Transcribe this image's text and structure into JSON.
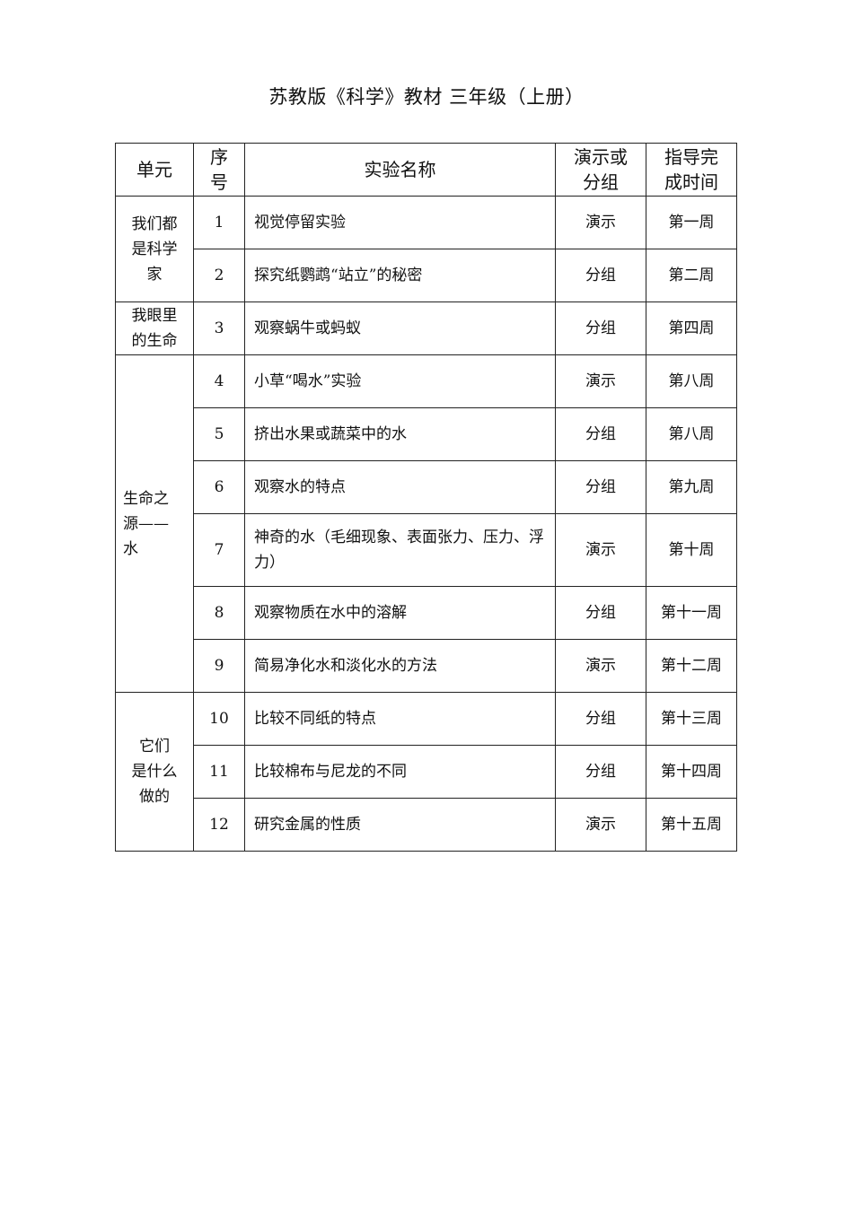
{
  "title": "苏教版《科学》教材  三年级（上册）",
  "table": {
    "headers": [
      "单元",
      "序号",
      "实验名称",
      "演示或分组",
      "指导完成时间"
    ],
    "header_display": [
      "单元",
      "序\n号",
      "实验名称",
      "演示或\n分组",
      "指导完\n成时间"
    ],
    "units": [
      {
        "name": "我们都是科学家",
        "display": "我们都\n是科学\n家",
        "align": "center",
        "rows": [
          {
            "no": "1",
            "name": "视觉停留实验",
            "type": "演示",
            "time": "第一周"
          },
          {
            "no": "2",
            "name": "探究纸鹦鹉“站立”的秘密",
            "type": "分组",
            "time": "第二周"
          }
        ]
      },
      {
        "name": "我眼里的生命",
        "display": "我眼里\n的生命",
        "align": "center",
        "rows": [
          {
            "no": "3",
            "name": "观察蜗牛或蚂蚁",
            "type": "分组",
            "time": "第四周"
          }
        ]
      },
      {
        "name": "生命之源——水",
        "display": "生命之\n源——\n水",
        "align": "left",
        "rows": [
          {
            "no": "4",
            "name": "小草“喝水”实验",
            "type": "演示",
            "time": "第八周"
          },
          {
            "no": "5",
            "name": "挤出水果或蔬菜中的水",
            "type": "分组",
            "time": "第八周"
          },
          {
            "no": "6",
            "name": "观察水的特点",
            "type": "分组",
            "time": "第九周"
          },
          {
            "no": "7",
            "name": "神奇的水（毛细现象、表面张力、压力、浮力）",
            "type": "演示",
            "time": "第十周"
          },
          {
            "no": "8",
            "name": "观察物质在水中的溶解",
            "type": "分组",
            "time": "第十一周"
          },
          {
            "no": "9",
            "name": "简易净化水和淡化水的方法",
            "type": "演示",
            "time": "第十二周"
          }
        ]
      },
      {
        "name": "它们是什么做的",
        "display": "它们\n是什么\n做的",
        "align": "center",
        "rows": [
          {
            "no": "10",
            "name": "比较不同纸的特点",
            "type": "分组",
            "time": "第十三周"
          },
          {
            "no": "11",
            "name": "比较棉布与尼龙的不同",
            "type": "分组",
            "time": "第十四周"
          },
          {
            "no": "12",
            "name": "研究金属的性质",
            "type": "演示",
            "time": "第十五周"
          }
        ]
      }
    ]
  }
}
